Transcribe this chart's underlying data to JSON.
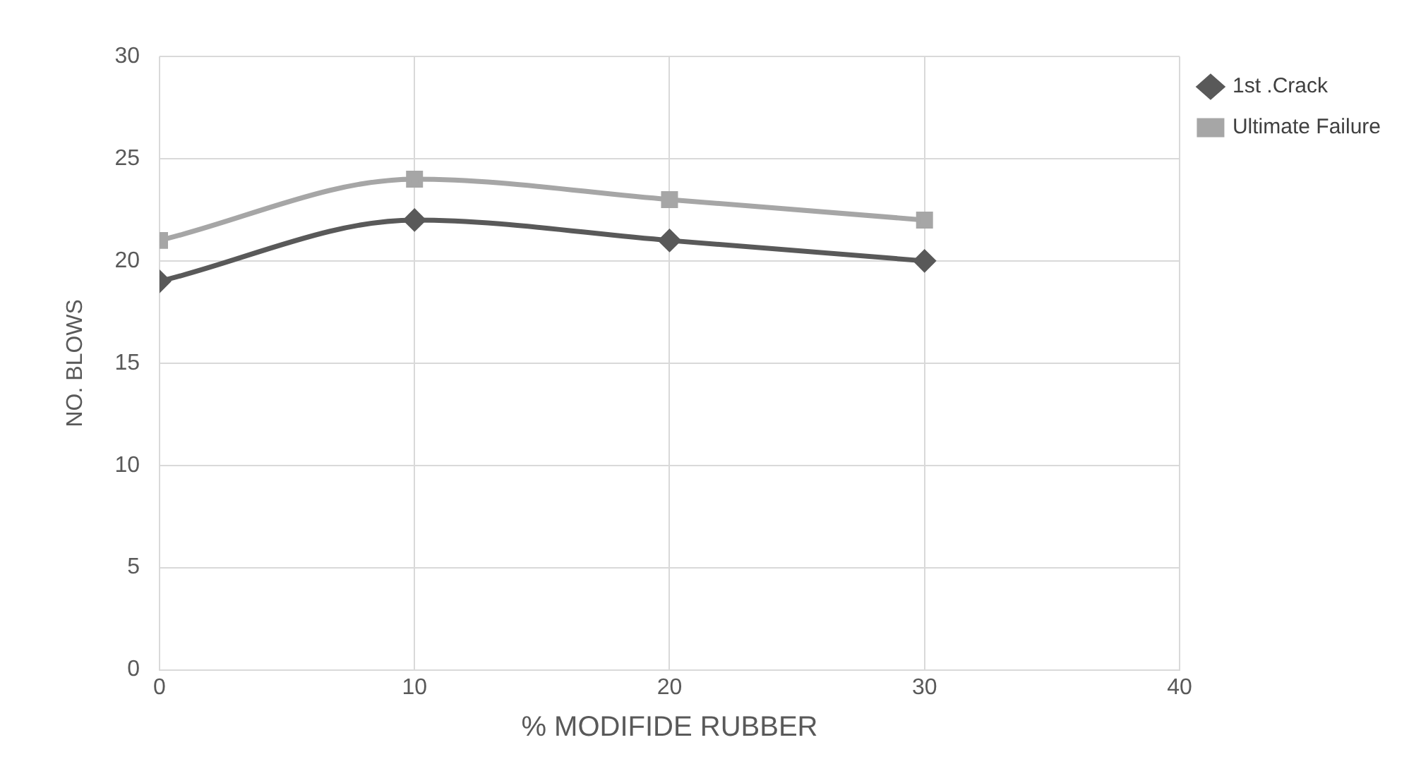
{
  "chart_data": {
    "type": "line",
    "xlabel": "% MODIFIDE RUBBER",
    "ylabel": "NO. BLOWS",
    "x": [
      0,
      10,
      20,
      30
    ],
    "series": [
      {
        "name": "1st .Crack",
        "color": "#595959",
        "values": [
          19,
          22,
          21,
          20
        ],
        "marker": "diamond"
      },
      {
        "name": "Ultimate Failure",
        "color": "#a6a6a6",
        "values": [
          21,
          24,
          23,
          22
        ],
        "marker": "square"
      }
    ],
    "xlim": [
      0,
      40
    ],
    "xticks": [
      0,
      10,
      20,
      30,
      40
    ],
    "ylim": [
      0,
      30
    ],
    "yticks": [
      0,
      5,
      10,
      15,
      20,
      25,
      30
    ],
    "grid": true,
    "legend": "right",
    "line_style": "solid"
  }
}
